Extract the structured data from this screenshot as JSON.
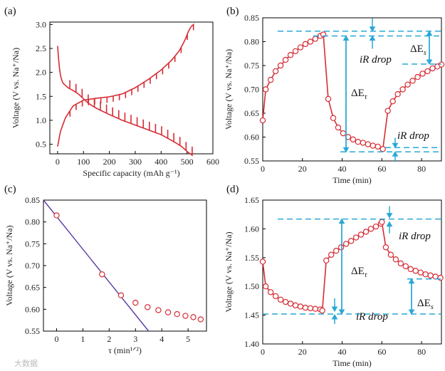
{
  "watermark": "大数据",
  "colors": {
    "curve": "#d62c34",
    "annotation": "#29a8d6",
    "fit": "#5b3aa3"
  },
  "chart_data": [
    {
      "panel": "(a)",
      "type": "line",
      "xlabel": "Specific capacity (mAh g⁻¹)",
      "ylabel": "Voltage (V vs. Na⁺/Na)",
      "xlim": [
        -30,
        600
      ],
      "ylim": [
        0.3,
        3.05
      ],
      "xticks": [
        0,
        100,
        200,
        300,
        400,
        500,
        600
      ],
      "yticks": [
        0.5,
        1.0,
        1.5,
        2.0,
        2.5,
        3.0
      ],
      "series": [
        {
          "x": [
            0,
            5,
            10,
            20,
            40,
            60,
            80,
            100,
            120,
            150,
            200,
            250,
            300,
            350,
            400,
            450,
            480,
            500,
            520
          ],
          "y": [
            2.55,
            2.2,
            1.95,
            1.78,
            1.68,
            1.62,
            1.55,
            1.45,
            1.35,
            1.25,
            1.12,
            1.0,
            0.9,
            0.8,
            0.7,
            0.55,
            0.45,
            0.35,
            0.27
          ],
          "pulses": 22,
          "pulse_dir": 1,
          "pulse_size": 0.18
        },
        {
          "x": [
            0,
            10,
            30,
            60,
            100,
            150,
            200,
            250,
            300,
            350,
            400,
            440,
            470,
            490,
            505,
            515,
            525
          ],
          "y": [
            0.45,
            0.75,
            1.05,
            1.3,
            1.42,
            1.46,
            1.49,
            1.55,
            1.68,
            1.85,
            2.05,
            2.25,
            2.45,
            2.65,
            2.85,
            2.95,
            3.0
          ],
          "pulses": 22,
          "pulse_dir": -1,
          "pulse_size": 0.12
        }
      ]
    },
    {
      "panel": "(b)",
      "type": "line",
      "xlabel": "Time (min)",
      "ylabel": "Voltage (V vs. Na⁺/Na)",
      "xlim": [
        0,
        90
      ],
      "ylim": [
        0.55,
        0.85
      ],
      "xticks": [
        0,
        20,
        40,
        60,
        80
      ],
      "yticks": [
        0.55,
        0.6,
        0.65,
        0.7,
        0.75,
        0.8,
        0.85
      ],
      "x": [
        0,
        1.5,
        4,
        6.5,
        9,
        11.5,
        14,
        16.5,
        19,
        21.5,
        24,
        26.5,
        29,
        30.5,
        33,
        35.5,
        38,
        40.5,
        43,
        45.5,
        48,
        50.5,
        53,
        55.5,
        58,
        60.5,
        63,
        65.5,
        68,
        70.5,
        73,
        75.5,
        78,
        80.5,
        83,
        85.5,
        88,
        90
      ],
      "y": [
        0.635,
        0.7,
        0.72,
        0.738,
        0.75,
        0.762,
        0.772,
        0.78,
        0.788,
        0.795,
        0.8,
        0.806,
        0.812,
        0.815,
        0.68,
        0.64,
        0.62,
        0.608,
        0.6,
        0.595,
        0.59,
        0.588,
        0.585,
        0.582,
        0.58,
        0.575,
        0.655,
        0.675,
        0.69,
        0.7,
        0.71,
        0.718,
        0.726,
        0.733,
        0.738,
        0.744,
        0.748,
        0.752
      ],
      "levels": [
        0.822,
        0.812,
        0.753,
        0.578,
        0.569
      ],
      "annotations": {
        "ir_drop_1": "iR drop",
        "delta_es": "ΔE",
        "delta_es_sub": "s",
        "delta_et": "ΔE",
        "delta_et_sub": "τ",
        "ir_drop_2": "iR drop"
      }
    },
    {
      "panel": "(c)",
      "type": "scatter",
      "xlabel": "τ (min¹ᐟ²)",
      "ylabel": "Voltage (V vs. Na⁺/Na)",
      "xlim": [
        -0.5,
        5.7
      ],
      "ylim": [
        0.55,
        0.85
      ],
      "xticks": [
        0,
        1,
        2,
        3,
        4,
        5
      ],
      "yticks": [
        0.55,
        0.6,
        0.65,
        0.7,
        0.75,
        0.8,
        0.85
      ],
      "x": [
        0,
        1.73,
        2.45,
        3.0,
        3.46,
        3.87,
        4.24,
        4.58,
        4.9,
        5.2,
        5.48
      ],
      "y": [
        0.815,
        0.68,
        0.632,
        0.615,
        0.605,
        0.598,
        0.593,
        0.589,
        0.585,
        0.582,
        0.577
      ],
      "fit": {
        "x": [
          -0.5,
          3.5
        ],
        "y": [
          0.85,
          0.55
        ]
      }
    },
    {
      "panel": "(d)",
      "type": "line",
      "xlabel": "Time (min)",
      "ylabel": "Voltage (V vs. Na⁺/Na)",
      "xlim": [
        0,
        90
      ],
      "ylim": [
        1.4,
        1.65
      ],
      "xticks": [
        0,
        20,
        40,
        60,
        80
      ],
      "yticks": [
        1.4,
        1.45,
        1.5,
        1.55,
        1.6,
        1.65
      ],
      "x": [
        0,
        1.5,
        4,
        6.5,
        9,
        11.5,
        14,
        16.5,
        19,
        21.5,
        24,
        26.5,
        29,
        30,
        32,
        34.5,
        37,
        39.5,
        42,
        44.5,
        47,
        49.5,
        52,
        54.5,
        57,
        59.5,
        60,
        62,
        64.5,
        67,
        69.5,
        72,
        74.5,
        77,
        79.5,
        82,
        84.5,
        87,
        89.5
      ],
      "y": [
        1.543,
        1.5,
        1.49,
        1.483,
        1.477,
        1.473,
        1.47,
        1.467,
        1.465,
        1.463,
        1.462,
        1.461,
        1.46,
        1.458,
        1.545,
        1.555,
        1.562,
        1.568,
        1.574,
        1.579,
        1.585,
        1.59,
        1.595,
        1.6,
        1.604,
        1.609,
        1.612,
        1.568,
        1.555,
        1.547,
        1.54,
        1.535,
        1.53,
        1.527,
        1.524,
        1.521,
        1.519,
        1.517,
        1.515
      ],
      "levels": [
        1.617,
        1.452,
        1.513
      ],
      "annotations": {
        "ir_drop_1": "iR drop",
        "delta_et": "ΔE",
        "delta_et_sub": "τ",
        "ir_drop_2": "iR drop",
        "delta_es": "ΔE",
        "delta_es_sub": "s"
      }
    }
  ]
}
